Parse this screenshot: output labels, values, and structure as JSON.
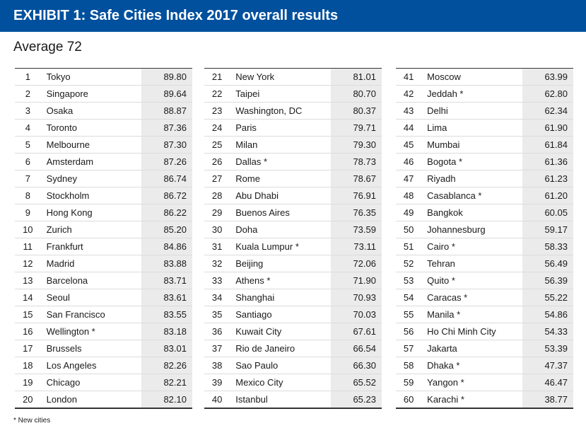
{
  "header": {
    "title": "EXHIBIT 1: Safe Cities Index 2017 overall results"
  },
  "subtitle": "Average 72",
  "footnote": "* New cities",
  "colors": {
    "header_bg": "#00509d",
    "header_text": "#ffffff",
    "score_bg": "#ebebeb",
    "rule": "#333333"
  },
  "chart_data": {
    "type": "table",
    "title": "EXHIBIT 1: Safe Cities Index 2017 overall results",
    "subtitle": "Average 72",
    "columns": [
      [
        {
          "rank": "1",
          "city": "Tokyo",
          "score": "89.80"
        },
        {
          "rank": "2",
          "city": "Singapore",
          "score": "89.64"
        },
        {
          "rank": "3",
          "city": "Osaka",
          "score": "88.87"
        },
        {
          "rank": "4",
          "city": "Toronto",
          "score": "87.36"
        },
        {
          "rank": "5",
          "city": "Melbourne",
          "score": "87.30"
        },
        {
          "rank": "6",
          "city": "Amsterdam",
          "score": "87.26"
        },
        {
          "rank": "7",
          "city": "Sydney",
          "score": "86.74"
        },
        {
          "rank": "8",
          "city": "Stockholm",
          "score": "86.72"
        },
        {
          "rank": "9",
          "city": "Hong Kong",
          "score": "86.22"
        },
        {
          "rank": "10",
          "city": "Zurich",
          "score": "85.20"
        },
        {
          "rank": "11",
          "city": "Frankfurt",
          "score": "84.86"
        },
        {
          "rank": "12",
          "city": "Madrid",
          "score": "83.88"
        },
        {
          "rank": "13",
          "city": "Barcelona",
          "score": "83.71"
        },
        {
          "rank": "14",
          "city": "Seoul",
          "score": "83.61"
        },
        {
          "rank": "15",
          "city": "San Francisco",
          "score": "83.55"
        },
        {
          "rank": "16",
          "city": "Wellington *",
          "score": "83.18"
        },
        {
          "rank": "17",
          "city": "Brussels",
          "score": "83.01"
        },
        {
          "rank": "18",
          "city": "Los Angeles",
          "score": "82.26"
        },
        {
          "rank": "19",
          "city": "Chicago",
          "score": "82.21"
        },
        {
          "rank": "20",
          "city": "London",
          "score": "82.10"
        }
      ],
      [
        {
          "rank": "21",
          "city": "New York",
          "score": "81.01"
        },
        {
          "rank": "22",
          "city": "Taipei",
          "score": "80.70"
        },
        {
          "rank": "23",
          "city": "Washington, DC",
          "score": "80.37"
        },
        {
          "rank": "24",
          "city": "Paris",
          "score": "79.71"
        },
        {
          "rank": "25",
          "city": "Milan",
          "score": "79.30"
        },
        {
          "rank": "26",
          "city": "Dallas *",
          "score": "78.73"
        },
        {
          "rank": "27",
          "city": "Rome",
          "score": "78.67"
        },
        {
          "rank": "28",
          "city": "Abu Dhabi",
          "score": "76.91"
        },
        {
          "rank": "29",
          "city": "Buenos Aires",
          "score": "76.35"
        },
        {
          "rank": "30",
          "city": "Doha",
          "score": "73.59"
        },
        {
          "rank": "31",
          "city": "Kuala Lumpur *",
          "score": "73.11"
        },
        {
          "rank": "32",
          "city": "Beijing",
          "score": "72.06"
        },
        {
          "rank": "33",
          "city": "Athens *",
          "score": "71.90"
        },
        {
          "rank": "34",
          "city": "Shanghai",
          "score": "70.93"
        },
        {
          "rank": "35",
          "city": "Santiago",
          "score": "70.03"
        },
        {
          "rank": "36",
          "city": "Kuwait City",
          "score": "67.61"
        },
        {
          "rank": "37",
          "city": "Rio de Janeiro",
          "score": "66.54"
        },
        {
          "rank": "38",
          "city": "Sao Paulo",
          "score": "66.30"
        },
        {
          "rank": "39",
          "city": "Mexico City",
          "score": "65.52"
        },
        {
          "rank": "40",
          "city": "Istanbul",
          "score": "65.23"
        }
      ],
      [
        {
          "rank": "41",
          "city": "Moscow",
          "score": "63.99"
        },
        {
          "rank": "42",
          "city": "Jeddah *",
          "score": "62.80"
        },
        {
          "rank": "43",
          "city": "Delhi",
          "score": "62.34"
        },
        {
          "rank": "44",
          "city": "Lima",
          "score": "61.90"
        },
        {
          "rank": "45",
          "city": "Mumbai",
          "score": "61.84"
        },
        {
          "rank": "46",
          "city": "Bogota *",
          "score": "61.36"
        },
        {
          "rank": "47",
          "city": "Riyadh",
          "score": "61.23"
        },
        {
          "rank": "48",
          "city": "Casablanca *",
          "score": "61.20"
        },
        {
          "rank": "49",
          "city": "Bangkok",
          "score": "60.05"
        },
        {
          "rank": "50",
          "city": "Johannesburg",
          "score": "59.17"
        },
        {
          "rank": "51",
          "city": "Cairo *",
          "score": "58.33"
        },
        {
          "rank": "52",
          "city": "Tehran",
          "score": "56.49"
        },
        {
          "rank": "53",
          "city": "Quito *",
          "score": "56.39"
        },
        {
          "rank": "54",
          "city": "Caracas *",
          "score": "55.22"
        },
        {
          "rank": "55",
          "city": "Manila *",
          "score": "54.86"
        },
        {
          "rank": "56",
          "city": "Ho Chi Minh City",
          "score": "54.33"
        },
        {
          "rank": "57",
          "city": "Jakarta",
          "score": "53.39"
        },
        {
          "rank": "58",
          "city": "Dhaka *",
          "score": "47.37"
        },
        {
          "rank": "59",
          "city": "Yangon *",
          "score": "46.47"
        },
        {
          "rank": "60",
          "city": "Karachi *",
          "score": "38.77"
        }
      ]
    ]
  }
}
